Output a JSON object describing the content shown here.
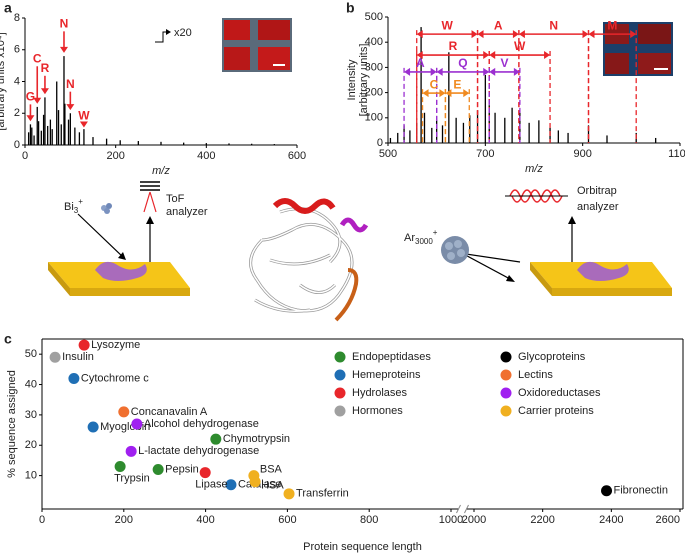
{
  "panel_labels": [
    "a",
    "b",
    "c"
  ],
  "chart_data": [
    {
      "type": "stem",
      "xlabel": "m/z",
      "ylabel": [
        "Intensity",
        "[arbitrary units x10⁴]"
      ],
      "xlim": [
        0,
        600
      ],
      "xticks": [
        0,
        200,
        400,
        600
      ],
      "ylim": [
        0,
        8
      ],
      "yticks": [
        0,
        2,
        4,
        6,
        8
      ],
      "color": "#000000",
      "annotation_color": "#e8262b",
      "magnification": "x20",
      "x": [
        8,
        12,
        15,
        20,
        27,
        30,
        36,
        41,
        44,
        50,
        56,
        60,
        70,
        74,
        80,
        86,
        88,
        96,
        100,
        110,
        120,
        130,
        150,
        180,
        210,
        250,
        300,
        350,
        400,
        450,
        500,
        550
      ],
      "values": [
        0.8,
        1.3,
        1.1,
        0.6,
        2.4,
        1.5,
        0.9,
        1.9,
        3.0,
        1.2,
        1.6,
        1.0,
        4.0,
        2.2,
        1.3,
        5.6,
        2.6,
        1.6,
        2.0,
        1.1,
        0.8,
        1.0,
        0.5,
        0.4,
        0.3,
        0.25,
        0.2,
        0.15,
        0.12,
        0.1,
        0.08,
        0.06
      ],
      "annotations": [
        {
          "text": "G",
          "x": 12,
          "label_y": 3.0,
          "y": 1.5
        },
        {
          "text": "C",
          "x": 27,
          "label_y": 5.4,
          "y": 2.6
        },
        {
          "text": "R",
          "x": 44,
          "label_y": 4.8,
          "y": 3.2
        },
        {
          "text": "N",
          "x": 86,
          "label_y": 7.6,
          "y": 5.8
        },
        {
          "text": "N",
          "x": 100,
          "label_y": 3.8,
          "y": 2.2
        },
        {
          "text": "W",
          "x": 130,
          "label_y": 1.8,
          "y": 1.1
        }
      ]
    },
    {
      "type": "stem",
      "xlabel": "m/z",
      "ylabel": [
        "Intensity",
        "[arbitrary units]"
      ],
      "xlim": [
        500,
        1100
      ],
      "xticks": [
        500,
        700,
        900,
        1100
      ],
      "ylim": [
        0,
        500
      ],
      "yticks": [
        0,
        100,
        200,
        300,
        400,
        500
      ],
      "color": "#000000",
      "x": [
        505,
        520,
        533,
        545,
        559,
        568,
        575,
        590,
        600,
        612,
        625,
        640,
        655,
        668,
        684,
        700,
        708,
        720,
        740,
        755,
        771,
        790,
        810,
        833,
        850,
        870,
        912,
        950,
        1010,
        1050
      ],
      "values": [
        20,
        40,
        70,
        50,
        80,
        460,
        120,
        60,
        90,
        70,
        360,
        100,
        80,
        110,
        130,
        270,
        150,
        120,
        100,
        140,
        120,
        80,
        90,
        60,
        50,
        40,
        70,
        30,
        40,
        20
      ],
      "brackets": [
        {
          "text": "W",
          "x1": 559,
          "x2": 684,
          "y": 432,
          "color": "#e8262b"
        },
        {
          "text": "A",
          "x1": 684,
          "x2": 769,
          "y": 432,
          "color": "#e8262b"
        },
        {
          "text": "N",
          "x1": 769,
          "x2": 912,
          "y": 432,
          "color": "#e8262b"
        },
        {
          "text": "M",
          "x1": 912,
          "x2": 1010,
          "y": 432,
          "color": "#e8262b"
        },
        {
          "text": "R",
          "x1": 559,
          "x2": 708,
          "y": 349,
          "color": "#e8262b"
        },
        {
          "text": "W",
          "x1": 708,
          "x2": 833,
          "y": 349,
          "color": "#e8262b"
        },
        {
          "text": "A",
          "x1": 533,
          "x2": 600,
          "y": 282,
          "color": "#9b30d0"
        },
        {
          "text": "Q",
          "x1": 600,
          "x2": 708,
          "y": 282,
          "color": "#9b30d0"
        },
        {
          "text": "V",
          "x1": 708,
          "x2": 771,
          "y": 282,
          "color": "#9b30d0"
        },
        {
          "text": "C",
          "x1": 571,
          "x2": 618,
          "y": 198,
          "color": "#f08a20"
        },
        {
          "text": "E",
          "x1": 618,
          "x2": 667,
          "y": 198,
          "color": "#f08a20"
        }
      ]
    },
    {
      "type": "scatter",
      "xlabel": "Protein sequence length",
      "ylabel": "% sequence assigned",
      "xlim": [
        0,
        2600
      ],
      "x_break": [
        1000,
        2000
      ],
      "xticks": [
        0,
        200,
        400,
        600,
        800,
        1000,
        2000,
        2200,
        2400,
        2600
      ],
      "ylim": [
        -1,
        55
      ],
      "yticks": [
        10,
        20,
        30,
        40,
        50
      ],
      "series": [
        {
          "name": "Endopeptidases",
          "color": "#2e8b2e",
          "labels": [
            "Chymotrypsin",
            "Trypsin",
            "Pepsin"
          ],
          "x": [
            425,
            191,
            284
          ],
          "values": [
            22,
            13,
            12
          ]
        },
        {
          "name": "Hemeproteins",
          "color": "#1f6fb5",
          "labels": [
            "Cytochrome c",
            "Myoglobin",
            "Catalase"
          ],
          "x": [
            78,
            125,
            462
          ],
          "values": [
            42,
            26,
            7
          ]
        },
        {
          "name": "Hydrolases",
          "color": "#e8262b",
          "labels": [
            "Lysozyme",
            "Lipase"
          ],
          "x": [
            103,
            399
          ],
          "values": [
            53,
            11
          ]
        },
        {
          "name": "Hormones",
          "color": "#a0a0a0",
          "labels": [
            "Insulin"
          ],
          "x": [
            32
          ],
          "values": [
            49
          ]
        },
        {
          "name": "Glycoproteins",
          "color": "#000000",
          "labels": [
            "Fibronectin"
          ],
          "x": [
            2386
          ],
          "values": [
            5
          ]
        },
        {
          "name": "Lectins",
          "color": "#f07030",
          "labels": [
            "Concanavalin A"
          ],
          "x": [
            200
          ],
          "values": [
            31
          ]
        },
        {
          "name": "Oxidoreductases",
          "color": "#a020f0",
          "labels": [
            "Alcohol dehydrogenase",
            "L-lactate dehydrogenase"
          ],
          "x": [
            232,
            218
          ],
          "values": [
            27,
            18
          ]
        },
        {
          "name": "Carrier proteins",
          "color": "#f0b020",
          "labels": [
            "BSA",
            "HSA",
            "Transferrin"
          ],
          "x": [
            518,
            521,
            604
          ],
          "values": [
            10,
            8,
            4
          ]
        }
      ]
    }
  ],
  "schematic": {
    "left_ion": {
      "symbol": "Bi",
      "sub": "3",
      "charge": "+"
    },
    "left_analyzer": [
      "ToF",
      "analyzer"
    ],
    "right_ion": {
      "symbol": "Ar",
      "sub": "3000",
      "charge": "+"
    },
    "right_analyzer": [
      "Orbitrap",
      "analyzer"
    ]
  }
}
